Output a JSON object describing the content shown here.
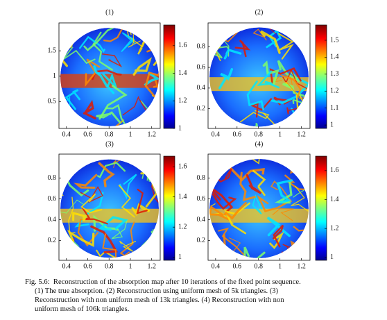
{
  "figure": {
    "panels": [
      {
        "title": "(1)",
        "xlim": [
          0.33,
          1.28
        ],
        "xticks": [
          0.4,
          0.6,
          0.8,
          1,
          1.2
        ],
        "ylim": [
          -0.03,
          2.05
        ],
        "yticks": [
          0.5,
          1,
          1.5
        ],
        "clim": [
          1,
          1.75
        ],
        "cticks": [
          1,
          1.2,
          1.4,
          1.6
        ]
      },
      {
        "title": "(2)",
        "xlim": [
          0.33,
          1.28
        ],
        "xticks": [
          0.4,
          0.6,
          0.8,
          1,
          1.2
        ],
        "ylim": [
          0.01,
          1.03
        ],
        "yticks": [
          0.2,
          0.4,
          0.6,
          0.8
        ],
        "clim": [
          0.98,
          1.59
        ],
        "cticks": [
          1,
          1.1,
          1.2,
          1.3,
          1.4,
          1.5
        ]
      },
      {
        "title": "(3)",
        "xlim": [
          0.33,
          1.28
        ],
        "xticks": [
          0.4,
          0.6,
          0.8,
          1,
          1.2
        ],
        "ylim": [
          0.01,
          1.03
        ],
        "yticks": [
          0.2,
          0.4,
          0.6,
          0.8
        ],
        "clim": [
          0.98,
          1.67
        ],
        "cticks": [
          1,
          1.2,
          1.4,
          1.6
        ]
      },
      {
        "title": "(4)",
        "xlim": [
          0.33,
          1.28
        ],
        "xticks": [
          0.4,
          0.6,
          0.8,
          1,
          1.2
        ],
        "ylim": [
          0.01,
          1.03
        ],
        "yticks": [
          0.2,
          0.4,
          0.6,
          0.8
        ],
        "clim": [
          0.98,
          1.7
        ],
        "cticks": [
          1,
          1.2,
          1.4,
          1.6
        ]
      }
    ],
    "caption": {
      "label": "Fig. 5.6:",
      "lines": [
        "Reconstruction of the absorption map after 10 iterations of the fixed point sequence.",
        "(1) The true absorption. (2) Reconstruction using uniform mesh of 5k triangles. (3)",
        "Reconstruction with non uniform mesh of 13k triangles. (4) Reconstruction with non",
        "uniform mesh of 106k triangles."
      ]
    }
  }
}
